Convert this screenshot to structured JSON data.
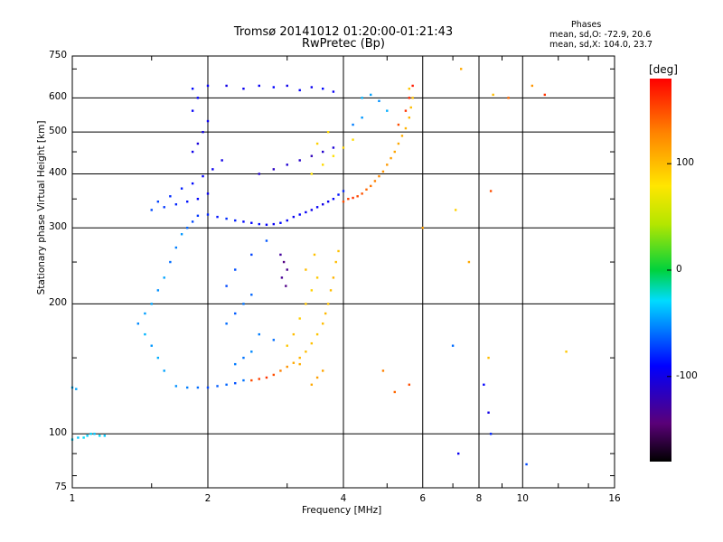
{
  "chart_data": {
    "type": "scatter",
    "title": "Tromsø 20141012 01:20:00-01:21:43",
    "subtitle": "RwPretec (Bp)",
    "xlabel": "Frequency [MHz]",
    "ylabel": "Stationary phase Virtual Height [km]",
    "x_scale": "log",
    "y_scale": "log",
    "xlim": [
      1,
      16
    ],
    "ylim": [
      75,
      750
    ],
    "x_ticks": [
      "1",
      "2",
      "4",
      "6",
      "8",
      "10",
      "16"
    ],
    "y_ticks": [
      "75",
      "100",
      "200",
      "300",
      "400",
      "500",
      "600",
      "750"
    ],
    "grid": true,
    "stats": {
      "heading": "Phases",
      "line_o": "mean, sd,O: -72.9, 20.6",
      "line_x": "mean, sd,X: 104.0, 23.7"
    },
    "colorbar": {
      "label": "[deg]",
      "range": [
        -180,
        180
      ],
      "ticks": [
        "100",
        "0",
        "-100"
      ],
      "colormap": "rainbow: black-purple-blue-cyan-green-yellow-orange-red"
    },
    "series": [
      {
        "description": "O-mode trace (blue/cyan, phase ~ -73 deg)",
        "points": [
          [
            1.0,
            97,
            -30
          ],
          [
            1.03,
            98,
            -35
          ],
          [
            1.06,
            98,
            -28
          ],
          [
            1.08,
            99,
            -32
          ],
          [
            1.1,
            100,
            -30
          ],
          [
            1.12,
            100,
            -36
          ],
          [
            1.15,
            99,
            -28
          ],
          [
            1.18,
            99,
            -34
          ],
          [
            1.0,
            128,
            -40
          ],
          [
            1.02,
            127,
            -44
          ],
          [
            1.9,
            128,
            -60
          ],
          [
            2.0,
            128,
            -70
          ],
          [
            2.1,
            129,
            -65
          ],
          [
            2.2,
            130,
            -62
          ],
          [
            2.3,
            131,
            -68
          ],
          [
            2.4,
            133,
            -58
          ],
          [
            1.8,
            128,
            -55
          ],
          [
            1.7,
            129,
            -50
          ],
          [
            1.6,
            140,
            -45
          ],
          [
            1.55,
            150,
            -42
          ],
          [
            1.5,
            160,
            -48
          ],
          [
            1.45,
            170,
            -40
          ],
          [
            1.4,
            180,
            -52
          ],
          [
            1.45,
            190,
            -46
          ],
          [
            1.5,
            200,
            -44
          ],
          [
            1.55,
            215,
            -50
          ],
          [
            1.6,
            230,
            -45
          ],
          [
            1.65,
            250,
            -60
          ],
          [
            1.7,
            270,
            -55
          ],
          [
            1.75,
            290,
            -48
          ],
          [
            1.8,
            300,
            -62
          ],
          [
            1.85,
            310,
            -70
          ],
          [
            1.9,
            320,
            -75
          ],
          [
            2.0,
            322,
            -80
          ],
          [
            2.1,
            318,
            -85
          ],
          [
            2.2,
            315,
            -78
          ],
          [
            2.3,
            312,
            -82
          ],
          [
            2.4,
            310,
            -88
          ],
          [
            2.5,
            308,
            -90
          ],
          [
            2.6,
            306,
            -86
          ],
          [
            2.7,
            305,
            -92
          ],
          [
            2.8,
            306,
            -95
          ],
          [
            2.9,
            308,
            -88
          ],
          [
            3.0,
            312,
            -92
          ],
          [
            3.1,
            318,
            -96
          ],
          [
            3.2,
            322,
            -90
          ],
          [
            3.3,
            326,
            -94
          ],
          [
            3.4,
            330,
            -98
          ],
          [
            3.5,
            335,
            -92
          ],
          [
            3.6,
            340,
            -100
          ],
          [
            3.7,
            345,
            -96
          ],
          [
            3.8,
            350,
            -90
          ],
          [
            3.9,
            358,
            -85
          ],
          [
            4.0,
            365,
            -80
          ],
          [
            1.5,
            330,
            -70
          ],
          [
            1.6,
            335,
            -75
          ],
          [
            1.7,
            340,
            -80
          ],
          [
            1.8,
            345,
            -85
          ],
          [
            1.9,
            350,
            -90
          ],
          [
            2.0,
            360,
            -95
          ],
          [
            1.55,
            345,
            -72
          ],
          [
            1.65,
            355,
            -78
          ],
          [
            1.75,
            370,
            -82
          ],
          [
            1.85,
            380,
            -88
          ],
          [
            1.95,
            395,
            -92
          ],
          [
            2.05,
            410,
            -96
          ],
          [
            2.15,
            430,
            -100
          ],
          [
            1.85,
            450,
            -98
          ],
          [
            1.9,
            470,
            -104
          ],
          [
            1.95,
            500,
            -100
          ],
          [
            2.0,
            530,
            -96
          ],
          [
            1.85,
            560,
            -92
          ],
          [
            1.9,
            600,
            -90
          ],
          [
            1.85,
            630,
            -88
          ],
          [
            2.0,
            640,
            -92
          ],
          [
            2.2,
            640,
            -100
          ],
          [
            2.4,
            630,
            -96
          ],
          [
            2.6,
            640,
            -94
          ],
          [
            2.8,
            635,
            -90
          ],
          [
            3.0,
            640,
            -98
          ],
          [
            3.2,
            625,
            -92
          ],
          [
            3.4,
            635,
            -96
          ],
          [
            3.6,
            630,
            -88
          ],
          [
            3.8,
            620,
            -94
          ],
          [
            2.6,
            400,
            -110
          ],
          [
            2.8,
            410,
            -115
          ],
          [
            3.0,
            420,
            -108
          ],
          [
            3.2,
            430,
            -112
          ],
          [
            3.4,
            440,
            -118
          ],
          [
            3.6,
            450,
            -110
          ],
          [
            3.8,
            460,
            -106
          ],
          [
            2.9,
            260,
            -130
          ],
          [
            2.95,
            250,
            -140
          ],
          [
            3.0,
            240,
            -135
          ],
          [
            2.92,
            230,
            -132
          ],
          [
            2.98,
            220,
            -138
          ],
          [
            2.2,
            180,
            -60
          ],
          [
            2.3,
            190,
            -65
          ],
          [
            2.4,
            200,
            -58
          ],
          [
            2.5,
            210,
            -62
          ],
          [
            2.2,
            220,
            -70
          ],
          [
            2.3,
            240,
            -68
          ],
          [
            2.5,
            260,
            -72
          ],
          [
            2.7,
            280,
            -66
          ],
          [
            2.6,
            170,
            -55
          ],
          [
            2.8,
            165,
            -60
          ],
          [
            2.5,
            155,
            -52
          ],
          [
            2.4,
            150,
            -58
          ],
          [
            2.3,
            145,
            -56
          ],
          [
            4.4,
            600,
            -40
          ],
          [
            4.6,
            610,
            -45
          ],
          [
            4.8,
            590,
            -50
          ],
          [
            5.0,
            560,
            -42
          ],
          [
            4.2,
            520,
            -55
          ],
          [
            4.4,
            540,
            -48
          ],
          [
            8.5,
            100,
            -80
          ],
          [
            7.2,
            90,
            -95
          ],
          [
            10.2,
            85,
            -70
          ],
          [
            7.0,
            160,
            -60
          ],
          [
            8.2,
            130,
            -90
          ],
          [
            8.4,
            112,
            -100
          ]
        ]
      },
      {
        "description": "X-mode trace (yellow/orange/red, phase ~ +104 deg)",
        "points": [
          [
            2.5,
            133,
            150
          ],
          [
            2.6,
            134,
            155
          ],
          [
            2.7,
            135,
            160
          ],
          [
            2.8,
            137,
            150
          ],
          [
            2.9,
            140,
            130
          ],
          [
            3.0,
            143,
            120
          ],
          [
            3.1,
            146,
            110
          ],
          [
            3.2,
            150,
            105
          ],
          [
            3.3,
            155,
            100
          ],
          [
            3.4,
            162,
            98
          ],
          [
            3.5,
            170,
            96
          ],
          [
            3.6,
            180,
            100
          ],
          [
            3.65,
            190,
            102
          ],
          [
            3.7,
            200,
            98
          ],
          [
            3.75,
            215,
            100
          ],
          [
            3.8,
            230,
            105
          ],
          [
            3.85,
            250,
            100
          ],
          [
            3.9,
            265,
            98
          ],
          [
            3.0,
            160,
            95
          ],
          [
            3.1,
            170,
            100
          ],
          [
            3.2,
            185,
            92
          ],
          [
            3.3,
            200,
            96
          ],
          [
            3.4,
            215,
            90
          ],
          [
            3.5,
            230,
            94
          ],
          [
            3.3,
            240,
            100
          ],
          [
            3.45,
            260,
            98
          ],
          [
            3.4,
            130,
            110
          ],
          [
            3.5,
            135,
            115
          ],
          [
            3.2,
            145,
            108
          ],
          [
            3.6,
            140,
            112
          ],
          [
            4.0,
            345,
            150
          ],
          [
            4.1,
            350,
            155
          ],
          [
            4.2,
            352,
            160
          ],
          [
            4.3,
            355,
            152
          ],
          [
            4.4,
            360,
            148
          ],
          [
            4.5,
            368,
            140
          ],
          [
            4.6,
            375,
            135
          ],
          [
            4.7,
            385,
            130
          ],
          [
            4.8,
            395,
            125
          ],
          [
            4.9,
            405,
            120
          ],
          [
            5.0,
            420,
            118
          ],
          [
            5.1,
            435,
            115
          ],
          [
            5.2,
            450,
            112
          ],
          [
            5.3,
            470,
            110
          ],
          [
            5.4,
            490,
            108
          ],
          [
            5.5,
            510,
            105
          ],
          [
            5.6,
            540,
            102
          ],
          [
            5.65,
            570,
            100
          ],
          [
            5.7,
            600,
            98
          ],
          [
            5.6,
            630,
            95
          ],
          [
            3.4,
            400,
            80
          ],
          [
            3.6,
            420,
            85
          ],
          [
            3.8,
            440,
            82
          ],
          [
            4.0,
            460,
            88
          ],
          [
            4.2,
            480,
            84
          ],
          [
            3.5,
            470,
            90
          ],
          [
            3.7,
            500,
            86
          ],
          [
            5.3,
            520,
            150
          ],
          [
            5.5,
            560,
            160
          ],
          [
            5.6,
            600,
            165
          ],
          [
            5.7,
            640,
            170
          ],
          [
            7.3,
            700,
            110
          ],
          [
            8.6,
            610,
            100
          ],
          [
            9.3,
            600,
            140
          ],
          [
            10.5,
            640,
            120
          ],
          [
            11.2,
            610,
            160
          ],
          [
            8.5,
            365,
            150
          ],
          [
            7.1,
            330,
            90
          ],
          [
            7.6,
            250,
            110
          ],
          [
            4.9,
            140,
            130
          ],
          [
            5.2,
            125,
            140
          ],
          [
            5.6,
            130,
            150
          ],
          [
            8.4,
            150,
            100
          ],
          [
            12.5,
            155,
            95
          ],
          [
            6.0,
            300,
            115
          ]
        ]
      }
    ]
  }
}
